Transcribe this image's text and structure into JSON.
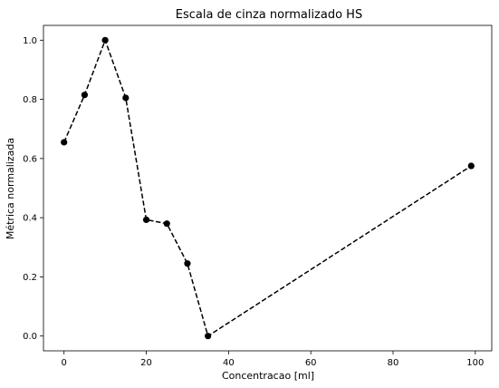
{
  "chart_data": {
    "type": "line",
    "title": "Escala de cinza normalizado HS",
    "xlabel": "Concentracao [ml]",
    "ylabel": "Métrica normalizada",
    "xlim": [
      -5,
      104
    ],
    "ylim": [
      -0.05,
      1.05
    ],
    "xticks": [
      "0",
      "20",
      "40",
      "60",
      "80",
      "100"
    ],
    "yticks": [
      "0.0",
      "0.2",
      "0.4",
      "0.6",
      "0.8",
      "1.0"
    ],
    "grid": false,
    "legend": "none",
    "series": [
      {
        "color": "#000000",
        "line_style": "dashed",
        "marker": "circle",
        "x": [
          0,
          5,
          10,
          15,
          20,
          25,
          30,
          35,
          99
        ],
        "y": [
          0.655,
          0.815,
          1.0,
          0.805,
          0.393,
          0.38,
          0.245,
          0.0,
          0.575
        ]
      }
    ]
  }
}
